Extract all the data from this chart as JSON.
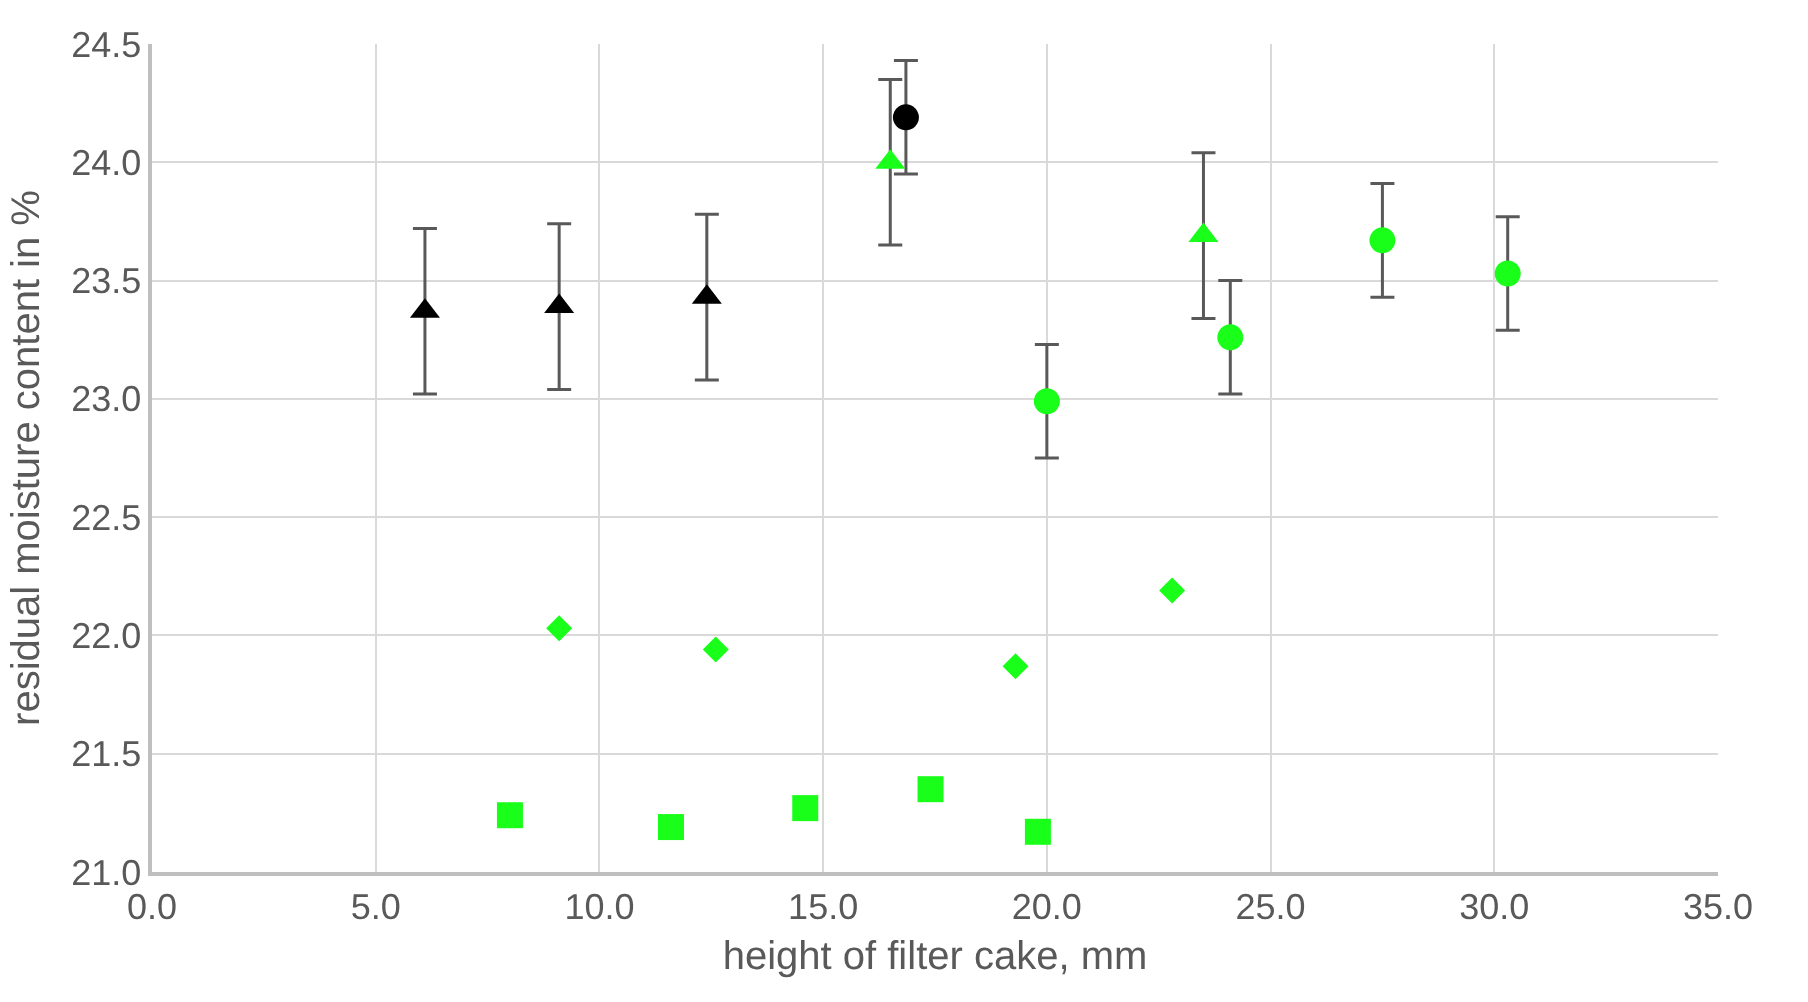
{
  "chart_data": {
    "type": "scatter",
    "xlabel": "height of filter cake, mm",
    "ylabel": "residual moisture content in %",
    "xlim": [
      0,
      35
    ],
    "xticks": [
      {
        "value": 0,
        "label": "0.0"
      },
      {
        "value": 5,
        "label": "5.0"
      },
      {
        "value": 10,
        "label": "10.0"
      },
      {
        "value": 15,
        "label": "15.0"
      },
      {
        "value": 20,
        "label": "20.0"
      },
      {
        "value": 25,
        "label": "25.0"
      },
      {
        "value": 30,
        "label": "30.0"
      },
      {
        "value": 35,
        "label": "35.0"
      }
    ],
    "ylim": [
      21,
      24.5
    ],
    "yticks": [
      {
        "value": 21,
        "label": "21.0"
      },
      {
        "value": 21.5,
        "label": "21.5"
      },
      {
        "value": 22,
        "label": "22.0"
      },
      {
        "value": 22.5,
        "label": "22.5"
      },
      {
        "value": 23,
        "label": "23.0"
      },
      {
        "value": 23.5,
        "label": "23.5"
      },
      {
        "value": 24,
        "label": "24.0"
      },
      {
        "value": 24.5,
        "label": "24.5"
      }
    ],
    "grid": true,
    "series": [
      {
        "color": "#000000",
        "marker": "triangle",
        "x": [
          6.1,
          9.1,
          12.4
        ],
        "values": [
          23.37,
          23.39,
          23.43
        ],
        "errors": [
          0.35,
          0.35,
          0.35
        ]
      },
      {
        "color": "#000000",
        "marker": "circle",
        "x": [
          16.85
        ],
        "values": [
          24.19
        ],
        "errors": [
          0.24
        ]
      },
      {
        "color": "#19ff19",
        "marker": "triangle",
        "x": [
          16.5,
          23.5
        ],
        "values": [
          24.0,
          23.69
        ],
        "errors": [
          0.35,
          0.35
        ]
      },
      {
        "color": "#19ff19",
        "marker": "circle",
        "x": [
          20.0,
          24.1,
          27.5,
          30.3
        ],
        "values": [
          22.99,
          23.26,
          23.67,
          23.53
        ],
        "errors": [
          0.24,
          0.24,
          0.24,
          0.24
        ]
      },
      {
        "color": "#19ff19",
        "marker": "diamond",
        "x": [
          9.1,
          12.6,
          19.3,
          22.8
        ],
        "values": [
          22.03,
          21.94,
          21.87,
          22.19
        ]
      },
      {
        "color": "#19ff19",
        "marker": "square",
        "x": [
          8.0,
          11.6,
          14.6,
          17.4,
          19.8
        ],
        "values": [
          21.24,
          21.19,
          21.27,
          21.35,
          21.17
        ]
      }
    ]
  }
}
